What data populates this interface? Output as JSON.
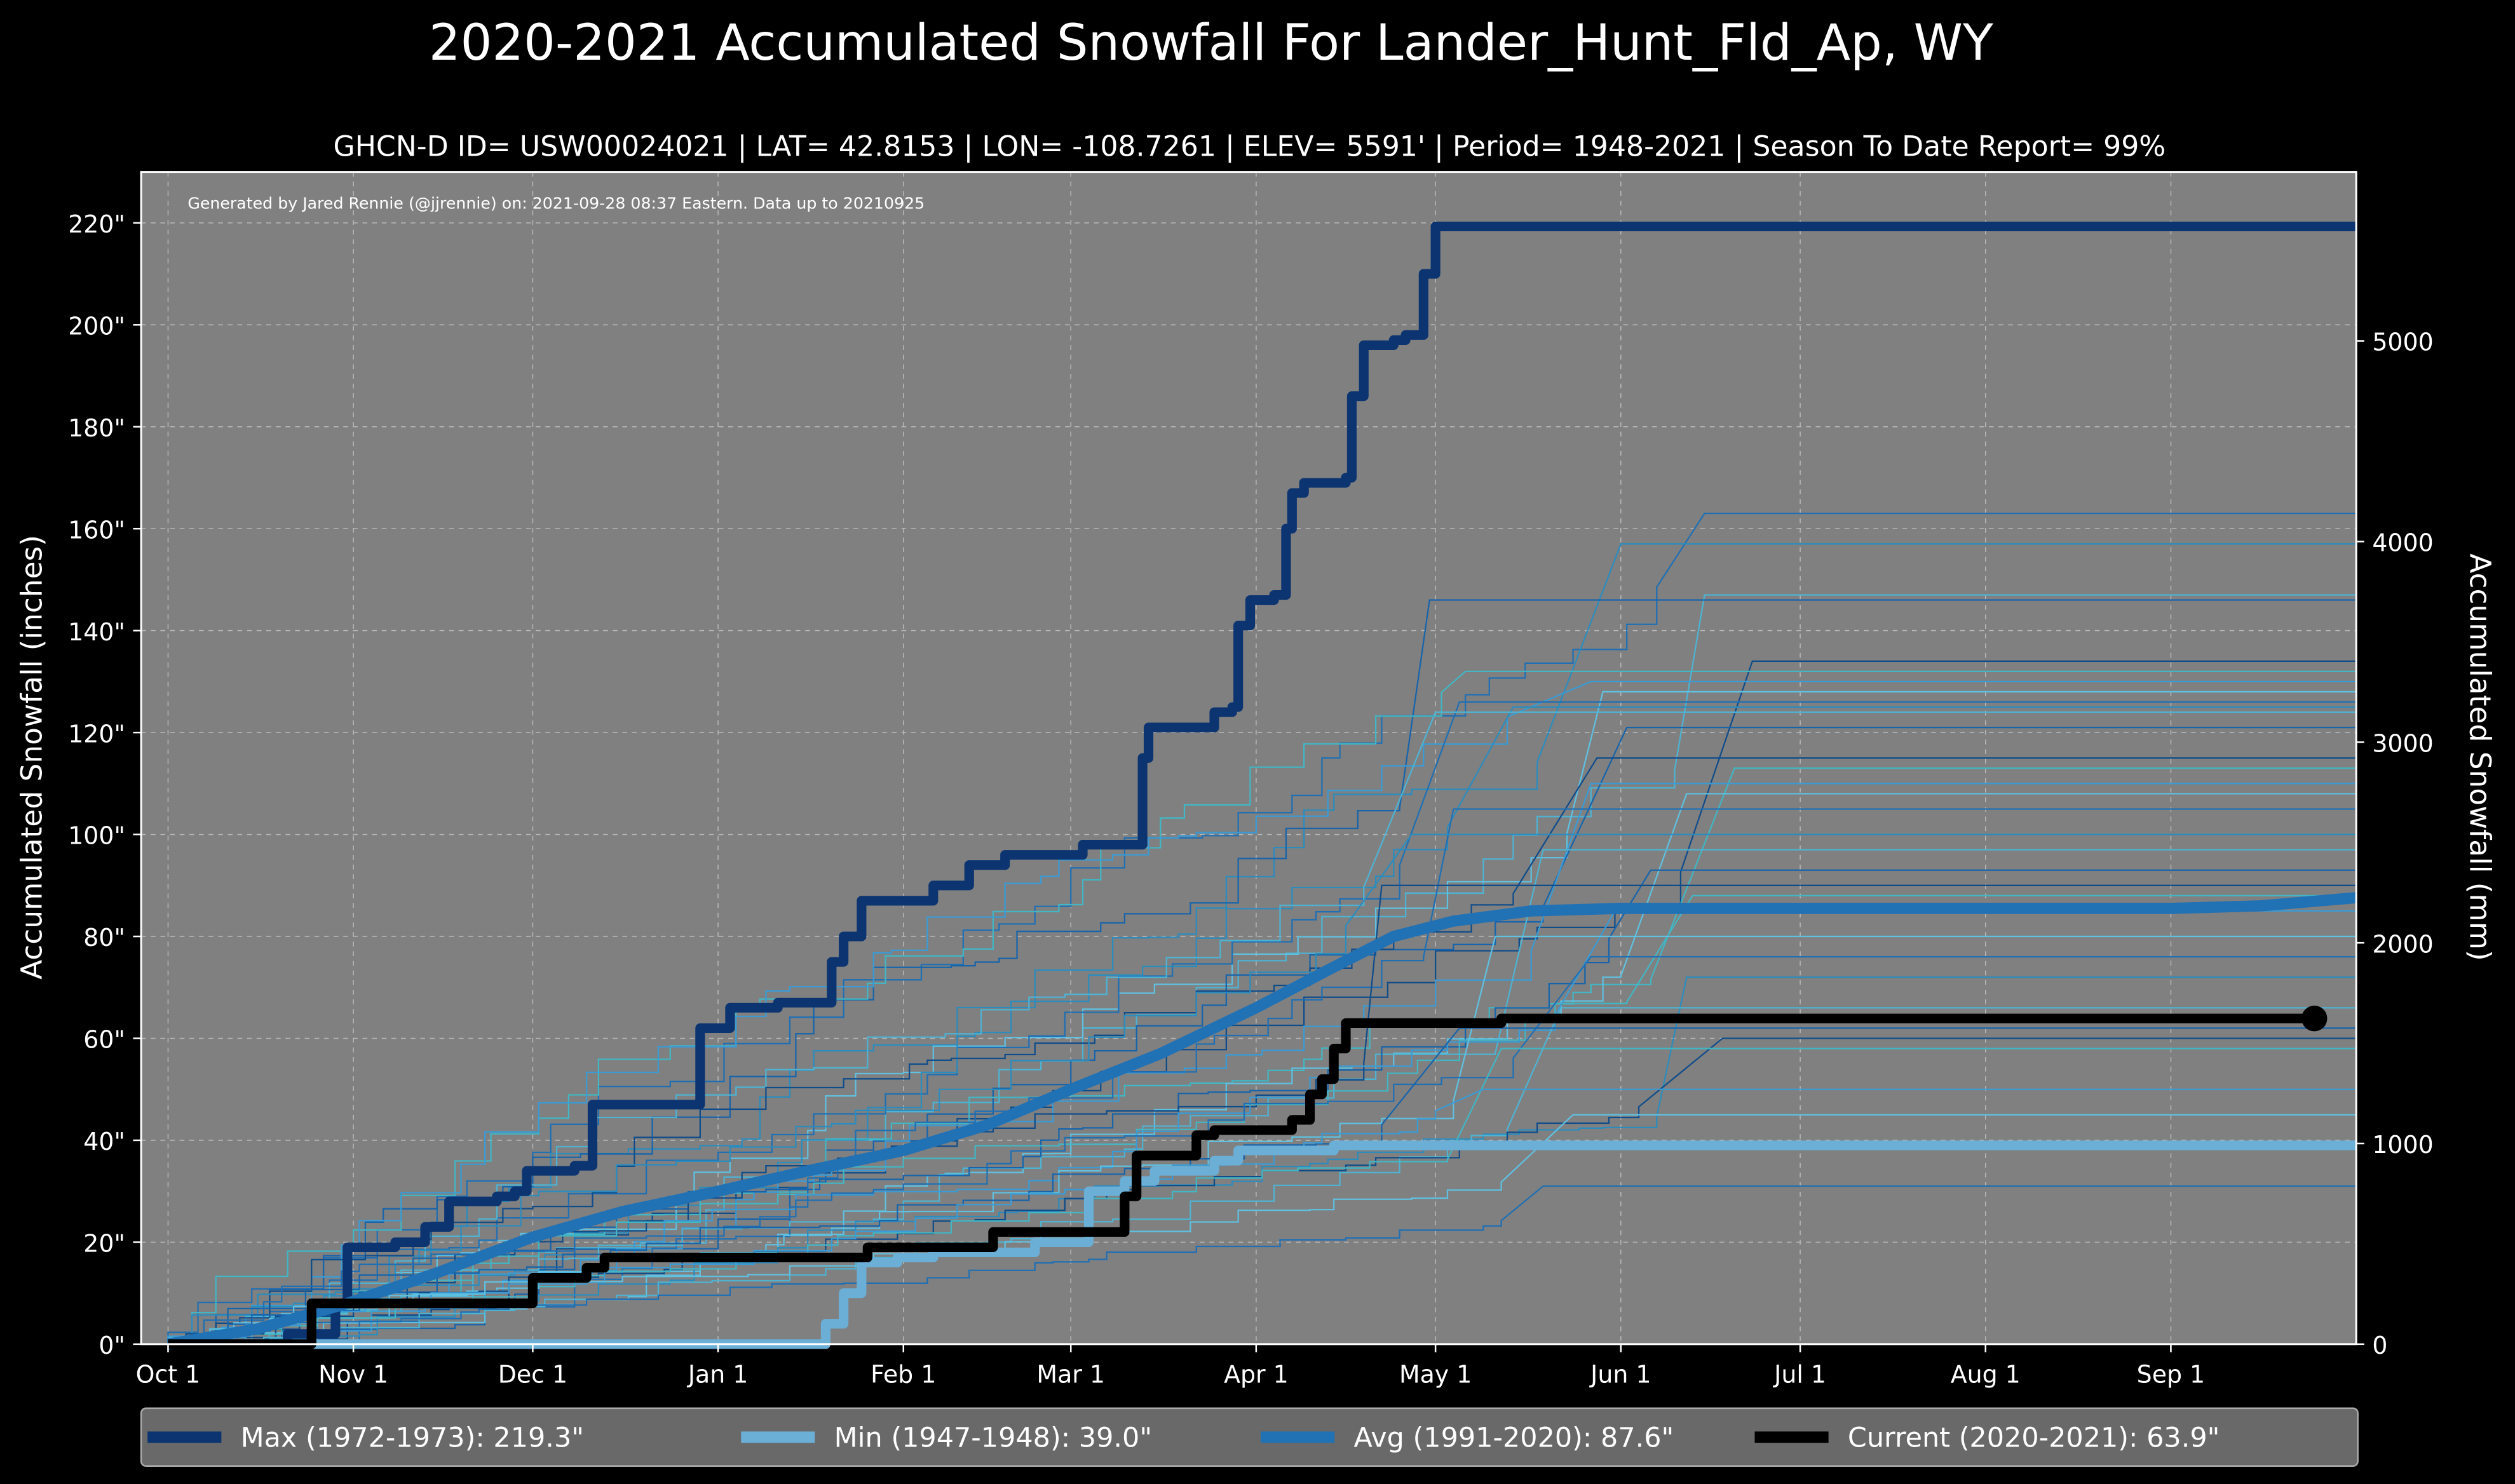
{
  "chart_data": {
    "type": "line",
    "title": "2020-2021 Accumulated Snowfall For Lander_Hunt_Fld_Ap, WY",
    "subtitle": "GHCN-D ID= USW00024021 | LAT= 42.8153 | LON= -108.7261 | ELEV= 5591' | Period= 1948-2021 | Season To Date Report= 99%",
    "annotation": "Generated by Jared Rennie (@jjrennie) on: 2021-09-28 08:37 Eastern. Data up to 20210925",
    "ylabel": "Accumulated Snowfall (inches)",
    "ylabel_right": "Accumulated Snowfall (mm)",
    "xlim": [
      -4.5,
      366
    ],
    "ylim": [
      0,
      230
    ],
    "grid": true,
    "legend_placement": "bottom",
    "x_ticks": [
      {
        "day": 0,
        "label": "Oct 1"
      },
      {
        "day": 31,
        "label": "Nov 1"
      },
      {
        "day": 61,
        "label": "Dec 1"
      },
      {
        "day": 92,
        "label": "Jan 1"
      },
      {
        "day": 123,
        "label": "Feb 1"
      },
      {
        "day": 151,
        "label": "Mar 1"
      },
      {
        "day": 182,
        "label": "Apr 1"
      },
      {
        "day": 212,
        "label": "May 1"
      },
      {
        "day": 243,
        "label": "Jun 1"
      },
      {
        "day": 273,
        "label": "Jul 1"
      },
      {
        "day": 304,
        "label": "Aug 1"
      },
      {
        "day": 335,
        "label": "Sep 1"
      }
    ],
    "y_ticks": [
      {
        "v": 0,
        "label": "0\""
      },
      {
        "v": 20,
        "label": "20\""
      },
      {
        "v": 40,
        "label": "40\""
      },
      {
        "v": 60,
        "label": "60\""
      },
      {
        "v": 80,
        "label": "80\""
      },
      {
        "v": 100,
        "label": "100\""
      },
      {
        "v": 120,
        "label": "120\""
      },
      {
        "v": 140,
        "label": "140\""
      },
      {
        "v": 160,
        "label": "160\""
      },
      {
        "v": 180,
        "label": "180\""
      },
      {
        "v": 200,
        "label": "200\""
      },
      {
        "v": 220,
        "label": "220\""
      }
    ],
    "y_ticks_right_mm": [
      {
        "v": 0,
        "label": "0"
      },
      {
        "v": 1000,
        "label": "1000"
      },
      {
        "v": 2000,
        "label": "2000"
      },
      {
        "v": 3000,
        "label": "3000"
      },
      {
        "v": 4000,
        "label": "4000"
      },
      {
        "v": 5000,
        "label": "5000"
      }
    ],
    "background_season_totals": [
      163,
      157,
      147,
      146,
      134,
      132,
      130,
      128,
      126,
      125,
      124,
      121,
      115,
      113,
      110,
      108,
      105,
      100,
      97,
      93,
      90,
      88,
      85,
      80,
      76,
      72,
      66,
      62,
      60,
      58,
      50,
      45,
      31
    ],
    "series": [
      {
        "name": "Max",
        "legend": "Max (1972-1973):  219.3\"",
        "color": "#0b3470",
        "width": 6,
        "step": true,
        "points": [
          [
            0,
            0
          ],
          [
            20,
            2
          ],
          [
            28,
            8
          ],
          [
            30,
            19
          ],
          [
            38,
            20
          ],
          [
            43,
            23
          ],
          [
            47,
            28
          ],
          [
            55,
            29
          ],
          [
            58,
            30
          ],
          [
            60,
            34
          ],
          [
            68,
            35
          ],
          [
            71,
            47
          ],
          [
            88,
            47
          ],
          [
            89,
            62
          ],
          [
            94,
            66
          ],
          [
            102,
            67
          ],
          [
            110,
            67
          ],
          [
            111,
            75
          ],
          [
            113,
            80
          ],
          [
            116,
            87
          ],
          [
            127,
            87
          ],
          [
            128,
            90
          ],
          [
            133,
            90
          ],
          [
            134,
            94
          ],
          [
            139,
            94
          ],
          [
            140,
            96
          ],
          [
            152,
            96
          ],
          [
            153,
            98
          ],
          [
            162,
            98
          ],
          [
            163,
            115
          ],
          [
            164,
            121
          ],
          [
            172,
            121
          ],
          [
            175,
            124
          ],
          [
            178,
            125
          ],
          [
            179,
            141
          ],
          [
            181,
            146
          ],
          [
            185,
            147
          ],
          [
            187,
            160
          ],
          [
            188,
            167
          ],
          [
            190,
            169
          ],
          [
            197,
            170
          ],
          [
            198,
            186
          ],
          [
            200,
            196
          ],
          [
            205,
            197
          ],
          [
            207,
            198
          ],
          [
            209,
            198
          ],
          [
            210,
            210
          ],
          [
            212,
            219.3
          ],
          [
            366,
            219.3
          ]
        ]
      },
      {
        "name": "Min",
        "legend": "Min (1947-1948):   39.0\"",
        "color": "#6baed6",
        "width": 6,
        "step": true,
        "points": [
          [
            0,
            0
          ],
          [
            108,
            0
          ],
          [
            110,
            4
          ],
          [
            113,
            10
          ],
          [
            116,
            16
          ],
          [
            122,
            17
          ],
          [
            128,
            18
          ],
          [
            140,
            18
          ],
          [
            145,
            20
          ],
          [
            153,
            20
          ],
          [
            154,
            30
          ],
          [
            160,
            32
          ],
          [
            165,
            34
          ],
          [
            175,
            36
          ],
          [
            179,
            38
          ],
          [
            195,
            39
          ],
          [
            366,
            39
          ]
        ]
      },
      {
        "name": "Avg",
        "legend": "Avg (1991-2020):   87.6\"",
        "color": "#2171b5",
        "width": 7,
        "step": false,
        "points": [
          [
            0,
            0
          ],
          [
            15,
            3
          ],
          [
            30,
            8
          ],
          [
            45,
            14
          ],
          [
            61,
            21
          ],
          [
            76,
            26
          ],
          [
            92,
            30
          ],
          [
            107,
            34
          ],
          [
            123,
            38
          ],
          [
            137,
            43
          ],
          [
            151,
            50
          ],
          [
            166,
            57
          ],
          [
            182,
            66
          ],
          [
            195,
            74
          ],
          [
            205,
            80
          ],
          [
            215,
            83
          ],
          [
            228,
            85
          ],
          [
            243,
            85.5
          ],
          [
            335,
            85.5
          ],
          [
            350,
            86
          ],
          [
            366,
            87.6
          ]
        ]
      },
      {
        "name": "Current",
        "legend": "Current (2020-2021):   63.9\"",
        "color": "#000000",
        "width": 6,
        "step": true,
        "points": [
          [
            0,
            0
          ],
          [
            22,
            0
          ],
          [
            24,
            8
          ],
          [
            59,
            8
          ],
          [
            61,
            13
          ],
          [
            69,
            13
          ],
          [
            70,
            15
          ],
          [
            73,
            17
          ],
          [
            110,
            17
          ],
          [
            117,
            19
          ],
          [
            136,
            19
          ],
          [
            138,
            22
          ],
          [
            159,
            22
          ],
          [
            160,
            29
          ],
          [
            162,
            37
          ],
          [
            170,
            37
          ],
          [
            172,
            41
          ],
          [
            175,
            42
          ],
          [
            186,
            42
          ],
          [
            188,
            44
          ],
          [
            191,
            49
          ],
          [
            193,
            52
          ],
          [
            195,
            58
          ],
          [
            197,
            63
          ],
          [
            222,
            63
          ],
          [
            223,
            63.9
          ],
          [
            359,
            63.9
          ]
        ]
      }
    ],
    "current_marker_day": 359
  },
  "colors": {
    "figure_bg": "#000000",
    "plot_bg": "#808080",
    "legend_bg": "#696969"
  }
}
